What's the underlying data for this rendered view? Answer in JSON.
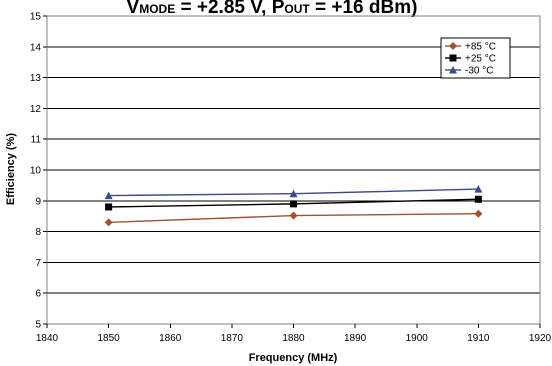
{
  "chart_data": {
    "type": "line",
    "title": {
      "parts": [
        {
          "text": "V",
          "sub": false
        },
        {
          "text": "MODE",
          "sub": true
        },
        {
          "text": " = +2.85 V, P",
          "sub": false
        },
        {
          "text": "OUT",
          "sub": true
        },
        {
          "text": " = +16 dBm)",
          "sub": false
        }
      ]
    },
    "xlabel": "Frequency (MHz)",
    "ylabel": "Efficiency (%)",
    "xlim": [
      1840,
      1920
    ],
    "ylim": [
      5,
      15
    ],
    "xticks": [
      1840,
      1850,
      1860,
      1870,
      1880,
      1890,
      1900,
      1910,
      1920
    ],
    "yticks": [
      5,
      6,
      7,
      8,
      9,
      10,
      11,
      12,
      13,
      14,
      15
    ],
    "grid": "horizontal",
    "legend_position": "top-right",
    "x": [
      1850,
      1880,
      1910
    ],
    "series": [
      {
        "name": "+85 °C",
        "values": [
          8.3,
          8.52,
          8.58
        ],
        "color": "#a0522d",
        "marker": "diamond"
      },
      {
        "name": "+25 °C",
        "values": [
          8.8,
          8.9,
          9.05
        ],
        "color": "#000000",
        "marker": "square"
      },
      {
        "name": "-30 °C",
        "values": [
          9.17,
          9.23,
          9.38
        ],
        "color": "#3c4b8c",
        "marker": "triangle"
      }
    ]
  }
}
